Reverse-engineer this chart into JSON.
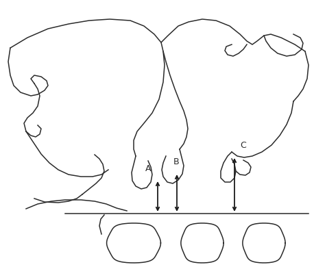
{
  "background_color": "#ffffff",
  "line_color": "#2a2a2a",
  "line_width": 1.1,
  "arrow_color": "#1a1a1a",
  "label_A": "A",
  "label_B": "B",
  "label_C": "C",
  "figsize": [
    4.58,
    3.93
  ],
  "dpi": 100,
  "xlim": [
    0,
    458
  ],
  "ylim": [
    0,
    393
  ]
}
